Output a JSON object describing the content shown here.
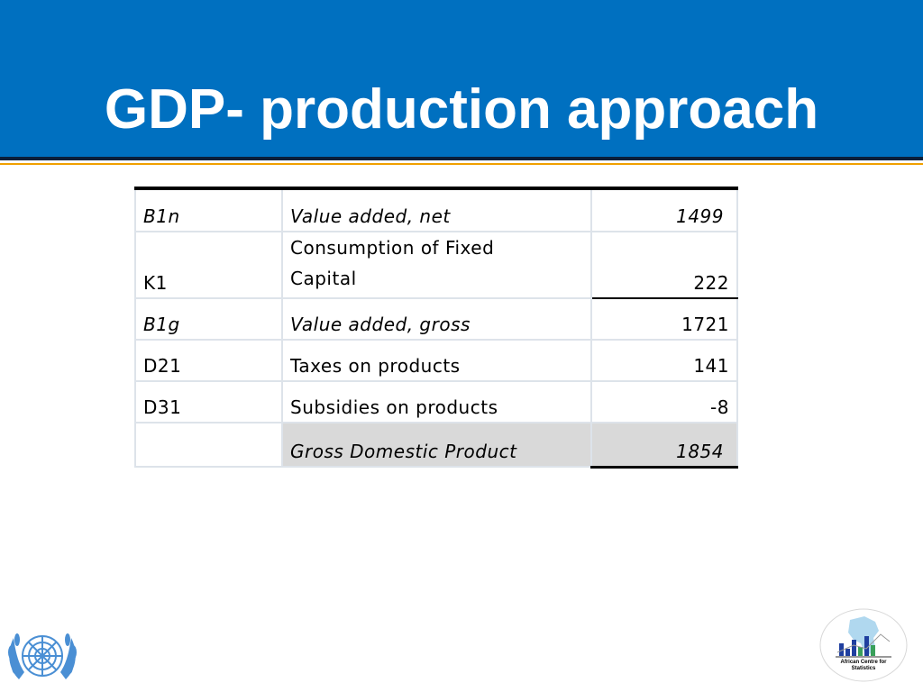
{
  "slide": {
    "title": "GDP- production approach"
  },
  "table": {
    "rows": [
      {
        "code": "B1n",
        "label": "Value added, net",
        "value": "1499"
      },
      {
        "code": "K1",
        "label_line1": "Consumption of Fixed",
        "label_line2": "Capital",
        "value": "222"
      },
      {
        "code": "B1g",
        "label": "Value added, gross",
        "value": "1721"
      },
      {
        "code": "D21",
        "label": "Taxes on products",
        "value": "141"
      },
      {
        "code": "D31",
        "label": "Subsidies on products",
        "value": "-8"
      },
      {
        "code": "",
        "label": "Gross Domestic Product",
        "value": "1854"
      }
    ]
  },
  "logos": {
    "left": {
      "icon": "un-emblem-icon"
    },
    "right": {
      "icon": "african-centre-for-statistics-logo-icon",
      "text_line1": "African Centre for",
      "text_line2": "Statistics"
    }
  },
  "colors": {
    "header_bg": "#0070C0",
    "title_text": "#ffffff",
    "rule_dark": "#0b1f3a",
    "rule_gold": "#f0a000",
    "total_row_shade": "#d9d9d9"
  }
}
